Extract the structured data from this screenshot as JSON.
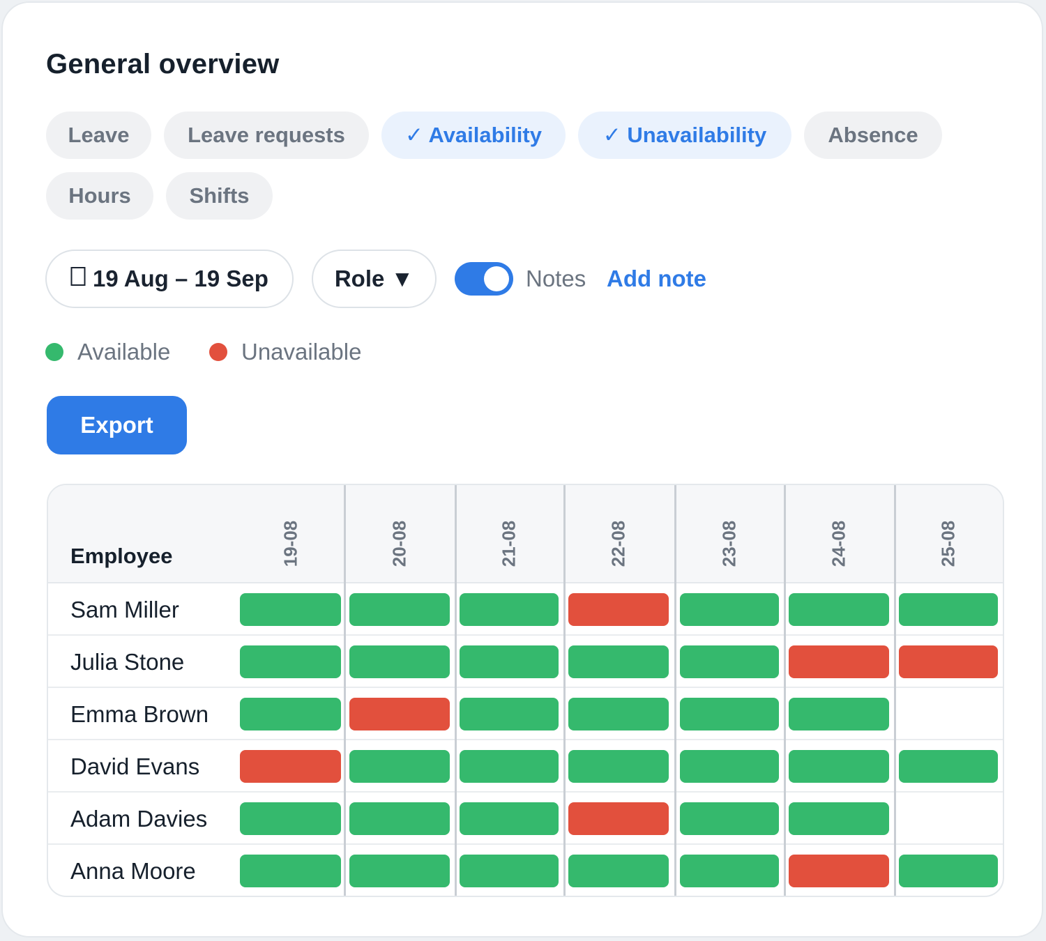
{
  "title": "General overview",
  "filters": [
    {
      "label": "Leave",
      "active": false
    },
    {
      "label": "Leave requests",
      "active": false
    },
    {
      "label": "✓ Availability",
      "active": true
    },
    {
      "label": "✓ Unavailability",
      "active": true
    },
    {
      "label": "Absence",
      "active": false
    },
    {
      "label": "Hours",
      "active": false
    },
    {
      "label": "Shifts",
      "active": false
    }
  ],
  "date_range": {
    "icon": "calendar-icon",
    "label": "19 Aug – 19 Sep"
  },
  "role_filter": {
    "label": "Role ▼"
  },
  "notes": {
    "toggle_on": true,
    "label": "Notes",
    "add_label": "Add note"
  },
  "legend": [
    {
      "label": "Available",
      "color": "#35b96d"
    },
    {
      "label": "Unavailable",
      "color": "#e2503d"
    }
  ],
  "export_label": "Export",
  "table": {
    "employee_header": "Employee",
    "dates": [
      "19-08",
      "20-08",
      "21-08",
      "22-08",
      "23-08",
      "24-08",
      "25-08"
    ],
    "rows": [
      {
        "name": "Sam Miller",
        "status": [
          "available",
          "available",
          "available",
          "unavailable",
          "available",
          "available",
          "available"
        ]
      },
      {
        "name": "Julia Stone",
        "status": [
          "available",
          "available",
          "available",
          "available",
          "available",
          "unavailable",
          "unavailable"
        ]
      },
      {
        "name": "Emma Brown",
        "status": [
          "available",
          "unavailable",
          "available",
          "available",
          "available",
          "available",
          ""
        ]
      },
      {
        "name": "David Evans",
        "status": [
          "unavailable",
          "available",
          "available",
          "available",
          "available",
          "available",
          "available"
        ]
      },
      {
        "name": "Adam Davies",
        "status": [
          "available",
          "available",
          "available",
          "unavailable",
          "available",
          "available",
          ""
        ]
      },
      {
        "name": "Anna Moore",
        "status": [
          "available",
          "available",
          "available",
          "available",
          "available",
          "unavailable",
          "available"
        ]
      }
    ]
  },
  "colors": {
    "available": "#35b96d",
    "unavailable": "#e2503d",
    "accent": "#2f7be6"
  }
}
